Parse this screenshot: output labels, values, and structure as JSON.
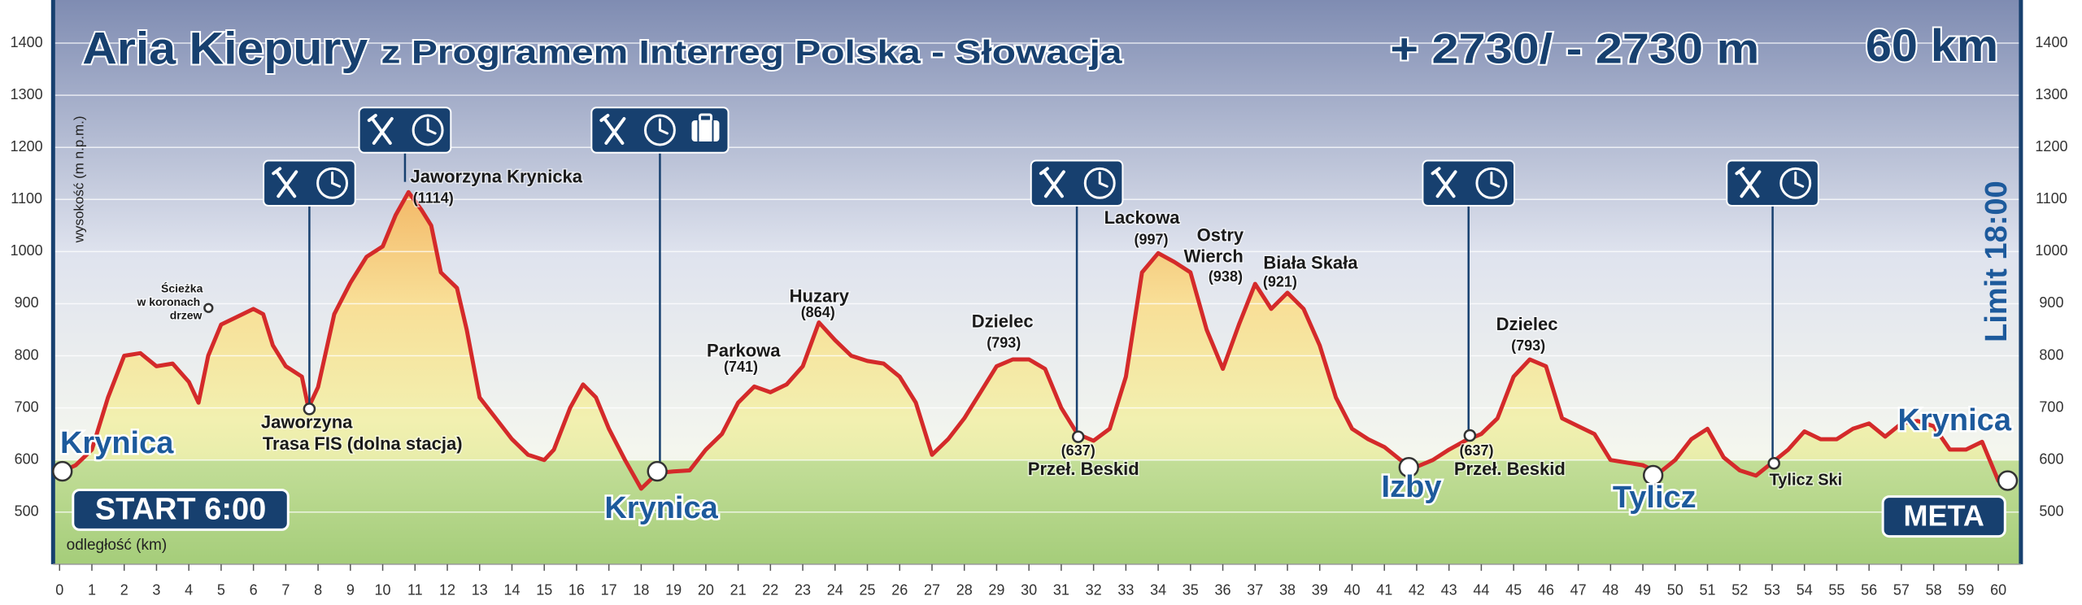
{
  "chart_data": {
    "type": "area",
    "title": "Aria Kiepury",
    "subtitle": "z Programem Interreg Polska - Słowacja",
    "elevation_gain": "+ 2730/ - 2730 m",
    "distance": "60 km",
    "time_limit": "Limit 18:00",
    "start": "START 6:00",
    "finish": "META",
    "x_label": "odległość (km)",
    "y_label": "wysokość (m n.p.m.)",
    "color": "#d42a2a",
    "grid": true,
    "x": [
      0,
      0.5,
      1,
      1.5,
      2,
      2.5,
      3,
      3.5,
      4,
      4.3,
      4.6,
      5,
      5.5,
      6,
      6.3,
      6.6,
      7,
      7.5,
      7.7,
      8,
      8.5,
      9,
      9.5,
      10,
      10.4,
      10.8,
      11.2,
      11.5,
      11.8,
      12.3,
      12.6,
      13,
      13.5,
      14,
      14.5,
      15,
      15.3,
      15.8,
      16.2,
      16.6,
      17,
      17.5,
      18,
      18.5,
      19,
      19.5,
      20,
      20.5,
      21,
      21.5,
      22,
      22.5,
      23,
      23.5,
      24,
      24.5,
      25,
      25.5,
      26,
      26.5,
      27,
      27.5,
      28,
      28.5,
      29,
      29.5,
      30,
      30.5,
      31,
      31.5,
      32,
      32.5,
      33,
      33.5,
      34,
      34.5,
      35,
      35.5,
      36,
      36.5,
      37,
      37.5,
      38,
      38.5,
      39,
      39.5,
      40,
      40.5,
      41,
      41.5,
      42,
      42.5,
      43,
      43.5,
      44,
      44.5,
      45,
      45.5,
      46,
      46.5,
      47,
      47.5,
      48,
      48.5,
      49,
      49.5,
      50,
      50.5,
      51,
      51.5,
      52,
      52.5,
      53,
      53.5,
      54,
      54.5,
      55,
      55.5,
      56,
      56.5,
      57,
      57.5,
      58,
      58.5,
      59,
      59.5,
      60
    ],
    "values": [
      576,
      590,
      620,
      720,
      800,
      805,
      780,
      785,
      750,
      710,
      800,
      860,
      875,
      890,
      880,
      820,
      780,
      760,
      700,
      740,
      880,
      940,
      990,
      1010,
      1070,
      1114,
      1080,
      1050,
      960,
      930,
      850,
      720,
      680,
      640,
      610,
      600,
      620,
      700,
      745,
      720,
      660,
      600,
      545,
      575,
      578,
      580,
      620,
      650,
      710,
      741,
      730,
      745,
      780,
      864,
      830,
      800,
      790,
      785,
      760,
      710,
      610,
      640,
      680,
      730,
      780,
      793,
      793,
      775,
      700,
      650,
      637,
      660,
      760,
      960,
      997,
      980,
      960,
      850,
      775,
      860,
      938,
      890,
      921,
      890,
      820,
      720,
      660,
      640,
      625,
      600,
      587,
      600,
      620,
      637,
      650,
      680,
      760,
      793,
      780,
      680,
      665,
      650,
      600,
      595,
      590,
      575,
      600,
      640,
      660,
      605,
      580,
      570,
      595,
      620,
      655,
      640,
      640,
      660,
      670,
      645,
      670,
      675,
      665,
      620,
      620,
      635,
      560
    ],
    "xlim": [
      -0.2,
      60.7
    ],
    "ylim": [
      400,
      1470
    ],
    "xticks": [
      0,
      1,
      2,
      3,
      4,
      5,
      6,
      7,
      8,
      9,
      10,
      11,
      12,
      13,
      14,
      15,
      16,
      17,
      18,
      19,
      20,
      21,
      22,
      23,
      24,
      25,
      26,
      27,
      28,
      29,
      30,
      31,
      32,
      33,
      34,
      35,
      36,
      37,
      38,
      39,
      40,
      41,
      42,
      43,
      44,
      45,
      46,
      47,
      48,
      49,
      50,
      51,
      52,
      53,
      54,
      55,
      56,
      57,
      58,
      59,
      60
    ],
    "yticks": [
      500,
      600,
      700,
      800,
      900,
      1000,
      1100,
      1200,
      1300,
      1400
    ],
    "places": [
      "Krynica",
      "Krynica",
      "Izby",
      "Tylicz",
      "Krynica"
    ],
    "labels": [
      "Ścieżka",
      "w koronach",
      "drzew",
      "Jaworzyna Krynicka",
      "(1114)",
      "Jaworzyna",
      "Trasa FIS (dolna stacja)",
      "Parkowa",
      "(741)",
      "Huzary",
      "(864)",
      "Dzielec",
      "(793)",
      "(637)",
      "Przeł. Beskid",
      "Lackowa",
      "(997)",
      "Ostry",
      "Wierch",
      "(938)",
      "Biała Skała",
      "(921)",
      "Dzielec",
      "(793)",
      "(637)",
      "Przeł. Beskid",
      "Tylicz Ski"
    ]
  }
}
